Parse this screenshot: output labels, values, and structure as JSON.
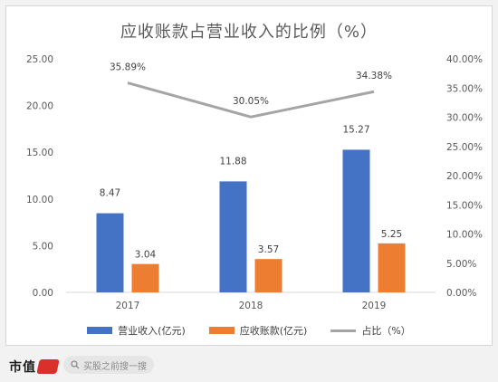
{
  "chart_data": {
    "type": "bar",
    "title": "应收账款占营业收入的比例（%）",
    "categories": [
      "2017",
      "2018",
      "2019"
    ],
    "series": [
      {
        "name": "营业收入(亿元)",
        "kind": "bar",
        "axis": "left",
        "color": "#4472c4",
        "values": [
          8.47,
          11.88,
          15.27
        ],
        "labels": [
          "8.47",
          "11.88",
          "15.27"
        ]
      },
      {
        "name": "应收账款(亿元)",
        "kind": "bar",
        "axis": "left",
        "color": "#ed7d31",
        "values": [
          3.04,
          3.57,
          5.25
        ],
        "labels": [
          "3.04",
          "3.57",
          "5.25"
        ]
      },
      {
        "name": "占比（%）",
        "kind": "line",
        "axis": "right",
        "color": "#a5a5a5",
        "values": [
          35.89,
          30.05,
          34.38
        ],
        "labels": [
          "35.89%",
          "30.05%",
          "34.38%"
        ]
      }
    ],
    "ylim_left": [
      0,
      25
    ],
    "yticks_left": [
      "0.00",
      "5.00",
      "10.00",
      "15.00",
      "20.00",
      "25.00"
    ],
    "ylim_right": [
      0,
      40
    ],
    "yticks_right": [
      "0.00%",
      "5.00%",
      "10.00%",
      "15.00%",
      "20.00%",
      "25.00%",
      "30.00%",
      "35.00%",
      "40.00%"
    ],
    "grid": false,
    "legend_position": "bottom"
  },
  "footer": {
    "logo_text": "市值",
    "search_placeholder": "买股之前搜一搜"
  }
}
